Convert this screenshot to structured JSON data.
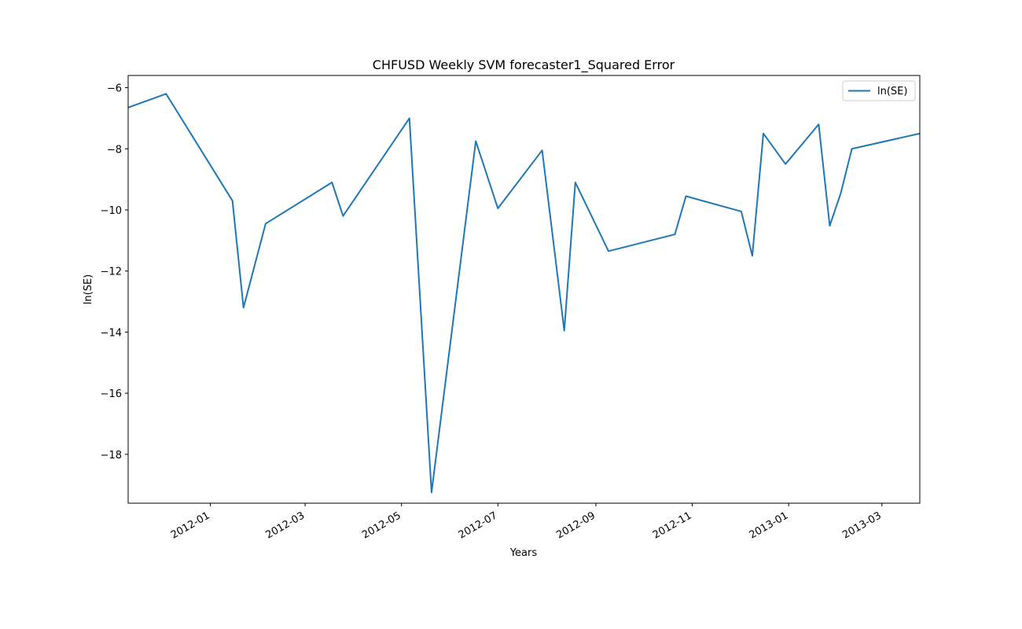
{
  "chart_data": {
    "type": "line",
    "title": "CHFUSD Weekly SVM forecaster1_Squared Error",
    "xlabel": "Years",
    "ylabel": "ln(SE)",
    "xlim": [
      "2011-11-10",
      "2013-03-25"
    ],
    "ylim": [
      -19.6,
      -5.6
    ],
    "x_ticks": [
      "2012-01-01",
      "2012-03-01",
      "2012-05-01",
      "2012-07-01",
      "2012-09-01",
      "2012-11-01",
      "2013-01-01",
      "2013-03-01"
    ],
    "x_tick_labels": [
      "2012-01",
      "2012-03",
      "2012-05",
      "2012-07",
      "2012-09",
      "2012-11",
      "2013-01",
      "2013-03"
    ],
    "y_ticks": [
      -18,
      -16,
      -14,
      -12,
      -10,
      -8,
      -6
    ],
    "y_tick_labels": [
      "−18",
      "−16",
      "−14",
      "−12",
      "−10",
      "−8",
      "−6"
    ],
    "legend": {
      "position": "top-right"
    },
    "grid": false,
    "series": [
      {
        "name": "ln(SE)",
        "color": "#1f77b4",
        "x": [
          "2011-11-10",
          "2011-12-04",
          "2012-01-15",
          "2012-01-22",
          "2012-02-05",
          "2012-03-18",
          "2012-03-25",
          "2012-05-06",
          "2012-05-20",
          "2012-06-17",
          "2012-07-01",
          "2012-07-29",
          "2012-08-12",
          "2012-08-19",
          "2012-09-09",
          "2012-10-21",
          "2012-10-28",
          "2012-12-02",
          "2012-12-09",
          "2012-12-16",
          "2012-12-30",
          "2013-01-20",
          "2013-01-27",
          "2013-02-03",
          "2013-02-10",
          "2013-03-25"
        ],
        "values": [
          -6.65,
          -6.2,
          -9.7,
          -13.2,
          -10.45,
          -9.1,
          -10.2,
          -7.0,
          -19.25,
          -7.75,
          -9.95,
          -8.05,
          -13.95,
          -9.1,
          -11.35,
          -10.8,
          -9.55,
          -10.05,
          -11.5,
          -7.5,
          -8.5,
          -7.2,
          -10.52,
          -9.45,
          -8.0,
          -7.5
        ]
      }
    ]
  }
}
